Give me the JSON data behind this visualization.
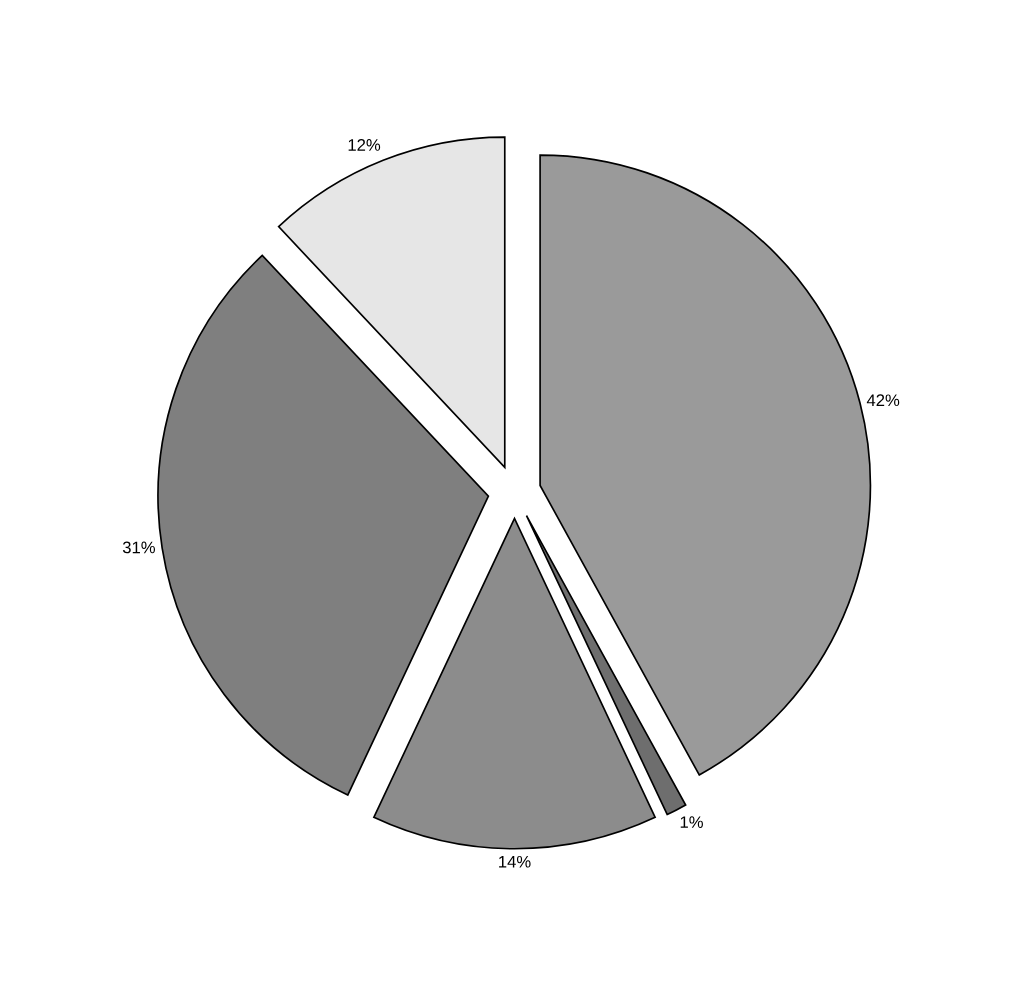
{
  "chart_data": {
    "type": "pie",
    "categories": [
      null,
      null,
      null,
      null,
      null
    ],
    "values": [
      42,
      1,
      14,
      31,
      12
    ],
    "value_labels": [
      "42%",
      "1%",
      "14%",
      "31%",
      "12%"
    ],
    "colors": [
      "#9a9a9a",
      "#6e6e6e",
      "#8c8c8c",
      "#7f7f7f",
      "#e6e6e6"
    ]
  }
}
